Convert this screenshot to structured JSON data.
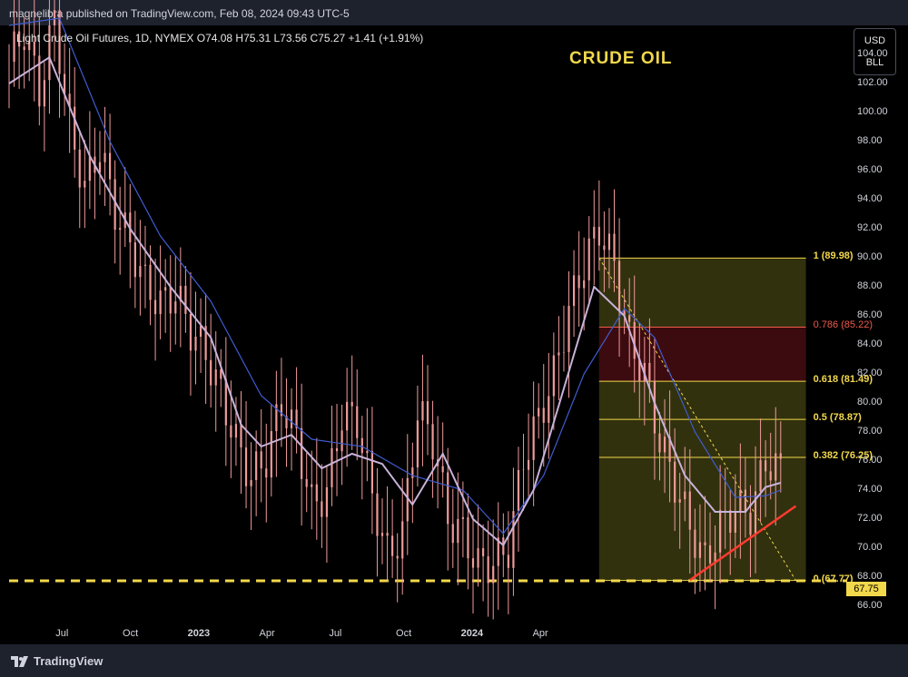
{
  "header": {
    "published": "magnelibra published on TradingView.com, Feb 08, 2024 09:43 UTC-5"
  },
  "legend": "Light Crude Oil Futures, 1D, NYMEX  O74.08  H75.31  L73.56  C75.27  +1.41 (+1.91%)",
  "currency": {
    "line1": "USD",
    "line2": "BLL"
  },
  "footer": {
    "brand": "TradingView"
  },
  "colors": {
    "candle": "#ef9a9a",
    "fast_ma": "#c9b3d9",
    "slow_ma": "#3f5ccf",
    "fib": "#f2d84b",
    "fib786": "#f05a4a",
    "trendline": "#ff3b30"
  },
  "chart_data": {
    "type": "candlestick",
    "title": "CRUDE  OIL",
    "current_price": "67.75",
    "y_ticks": [
      "104.00",
      "102.00",
      "100.00",
      "98.00",
      "96.00",
      "94.00",
      "92.00",
      "90.00",
      "88.00",
      "86.00",
      "84.00",
      "82.00",
      "80.00",
      "78.00",
      "76.00",
      "74.00",
      "72.00",
      "70.00",
      "68.00",
      "66.00"
    ],
    "ylim": [
      65,
      106
    ],
    "x_ticks": [
      {
        "label": "Jul",
        "bold": false
      },
      {
        "label": "Oct",
        "bold": false
      },
      {
        "label": "2023",
        "bold": true
      },
      {
        "label": "Apr",
        "bold": false
      },
      {
        "label": "Jul",
        "bold": false
      },
      {
        "label": "Oct",
        "bold": false
      },
      {
        "label": "2024",
        "bold": true
      },
      {
        "label": "Apr",
        "bold": false
      }
    ],
    "fibonacci": [
      {
        "ratio": "1",
        "value": 89.98,
        "label": "1 (89.98)"
      },
      {
        "ratio": "0.786",
        "value": 85.22,
        "label": "0.786 (85.22)"
      },
      {
        "ratio": "0.618",
        "value": 81.49,
        "label": "0.618 (81.49)"
      },
      {
        "ratio": "0.5",
        "value": 78.87,
        "label": "0.5 (78.87)"
      },
      {
        "ratio": "0.382",
        "value": 76.25,
        "label": "0.382 (76.25)"
      },
      {
        "ratio": "0",
        "value": 67.77,
        "label": "0 (67.77)"
      }
    ],
    "support_level": 67.75,
    "closes": [
      {
        "t": 0,
        "c": 103.5
      },
      {
        "t": 3,
        "c": 105.6
      },
      {
        "t": 6,
        "c": 101.4
      },
      {
        "t": 9,
        "c": 106.5
      },
      {
        "t": 12,
        "c": 99.0
      },
      {
        "t": 15,
        "c": 94.8
      },
      {
        "t": 18,
        "c": 97.6
      },
      {
        "t": 21,
        "c": 93.2
      },
      {
        "t": 24,
        "c": 91.0
      },
      {
        "t": 27,
        "c": 88.2
      },
      {
        "t": 30,
        "c": 86.8
      },
      {
        "t": 33,
        "c": 87.6
      },
      {
        "t": 36,
        "c": 85.0
      },
      {
        "t": 39,
        "c": 83.4
      },
      {
        "t": 42,
        "c": 80.6
      },
      {
        "t": 45,
        "c": 77.3
      },
      {
        "t": 48,
        "c": 74.8
      },
      {
        "t": 51,
        "c": 76.2
      },
      {
        "t": 54,
        "c": 80.0
      },
      {
        "t": 57,
        "c": 77.6
      },
      {
        "t": 60,
        "c": 73.0
      },
      {
        "t": 63,
        "c": 73.8
      },
      {
        "t": 66,
        "c": 79.2
      },
      {
        "t": 69,
        "c": 78.8
      },
      {
        "t": 72,
        "c": 73.6
      },
      {
        "t": 75,
        "c": 69.5
      },
      {
        "t": 78,
        "c": 71.0
      },
      {
        "t": 81,
        "c": 79.5
      },
      {
        "t": 84,
        "c": 77.5
      },
      {
        "t": 87,
        "c": 72.0
      },
      {
        "t": 90,
        "c": 71.0
      },
      {
        "t": 93,
        "c": 68.8
      },
      {
        "t": 96,
        "c": 69.0
      },
      {
        "t": 99,
        "c": 70.0
      },
      {
        "t": 102,
        "c": 76.2
      },
      {
        "t": 105,
        "c": 78.9
      },
      {
        "t": 108,
        "c": 81.9
      },
      {
        "t": 111,
        "c": 86.4
      },
      {
        "t": 114,
        "c": 89.6
      },
      {
        "t": 117,
        "c": 92.0
      },
      {
        "t": 120,
        "c": 89.5
      },
      {
        "t": 123,
        "c": 84.2
      },
      {
        "t": 126,
        "c": 82.0
      },
      {
        "t": 129,
        "c": 77.4
      },
      {
        "t": 132,
        "c": 74.5
      },
      {
        "t": 135,
        "c": 71.5
      },
      {
        "t": 138,
        "c": 69.0
      },
      {
        "t": 141,
        "c": 71.5
      },
      {
        "t": 144,
        "c": 72.8
      },
      {
        "t": 147,
        "c": 72.3
      },
      {
        "t": 150,
        "c": 76.0
      },
      {
        "t": 153,
        "c": 75.3
      }
    ],
    "fast_ma": [
      {
        "t": 0,
        "v": 102.0
      },
      {
        "t": 8,
        "v": 103.8
      },
      {
        "t": 16,
        "v": 97.0
      },
      {
        "t": 24,
        "v": 92.0
      },
      {
        "t": 32,
        "v": 88.0
      },
      {
        "t": 40,
        "v": 84.5
      },
      {
        "t": 46,
        "v": 78.5
      },
      {
        "t": 50,
        "v": 77.0
      },
      {
        "t": 56,
        "v": 77.8
      },
      {
        "t": 62,
        "v": 75.5
      },
      {
        "t": 68,
        "v": 76.5
      },
      {
        "t": 74,
        "v": 75.8
      },
      {
        "t": 80,
        "v": 73.0
      },
      {
        "t": 86,
        "v": 76.5
      },
      {
        "t": 92,
        "v": 72.0
      },
      {
        "t": 98,
        "v": 70.2
      },
      {
        "t": 104,
        "v": 74.0
      },
      {
        "t": 110,
        "v": 81.0
      },
      {
        "t": 116,
        "v": 88.0
      },
      {
        "t": 122,
        "v": 86.0
      },
      {
        "t": 128,
        "v": 80.0
      },
      {
        "t": 134,
        "v": 75.0
      },
      {
        "t": 140,
        "v": 72.5
      },
      {
        "t": 146,
        "v": 72.5
      },
      {
        "t": 150,
        "v": 74.2
      },
      {
        "t": 153,
        "v": 74.5
      }
    ],
    "slow_ma": [
      {
        "t": 0,
        "v": 106.0
      },
      {
        "t": 10,
        "v": 106.5
      },
      {
        "t": 20,
        "v": 98.0
      },
      {
        "t": 30,
        "v": 91.5
      },
      {
        "t": 40,
        "v": 87.0
      },
      {
        "t": 50,
        "v": 80.5
      },
      {
        "t": 60,
        "v": 77.5
      },
      {
        "t": 70,
        "v": 77.0
      },
      {
        "t": 80,
        "v": 75.0
      },
      {
        "t": 90,
        "v": 74.0
      },
      {
        "t": 98,
        "v": 71.0
      },
      {
        "t": 106,
        "v": 75.0
      },
      {
        "t": 114,
        "v": 82.0
      },
      {
        "t": 122,
        "v": 86.5
      },
      {
        "t": 128,
        "v": 84.5
      },
      {
        "t": 136,
        "v": 78.0
      },
      {
        "t": 144,
        "v": 73.5
      },
      {
        "t": 150,
        "v": 73.6
      },
      {
        "t": 153,
        "v": 74.0
      }
    ],
    "trendline": [
      {
        "t": 135,
        "v": 67.8
      },
      {
        "t": 156,
        "v": 72.9
      }
    ],
    "fib_projection": [
      {
        "t": 117,
        "v": 89.98
      },
      {
        "t": 156,
        "v": 67.77
      }
    ]
  }
}
